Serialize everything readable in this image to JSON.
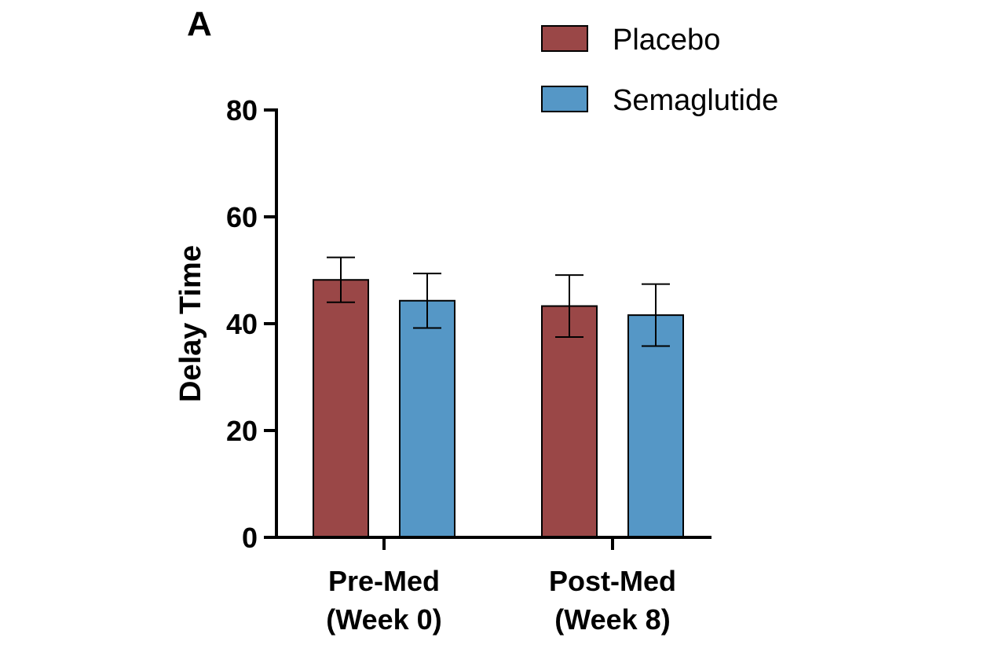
{
  "panel_label": "A",
  "colors": {
    "Placebo": "#9a4747",
    "Semaglutide": "#5597c6",
    "axis": "#000000"
  },
  "chart_data": {
    "type": "bar",
    "ylabel": "Delay Time",
    "xlabel": "",
    "ylim": [
      0,
      80
    ],
    "yticks": [
      0,
      20,
      40,
      60,
      80
    ],
    "categories": [
      [
        "Pre-Med",
        "(Week 0)"
      ],
      [
        "Post-Med",
        "(Week 8)"
      ]
    ],
    "series": [
      {
        "name": "Placebo",
        "values": [
          48.2,
          43.3
        ],
        "errors": [
          4.2,
          5.8
        ]
      },
      {
        "name": "Semaglutide",
        "values": [
          44.3,
          41.6
        ],
        "errors": [
          5.1,
          5.8
        ]
      }
    ],
    "legend_position": "top-right",
    "grid": false
  }
}
